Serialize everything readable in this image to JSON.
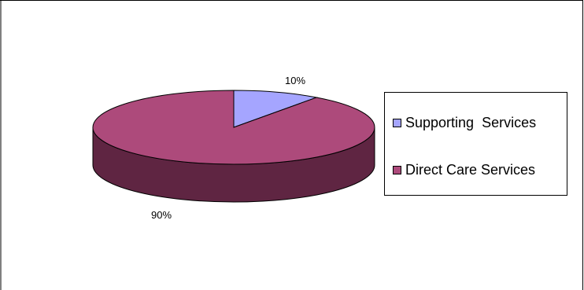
{
  "chart_data": {
    "type": "pie",
    "title": "",
    "style": "3d",
    "categories": [
      "Supporting  Services",
      "Direct Care Services"
    ],
    "values": [
      10,
      90
    ],
    "labels": [
      "10%",
      "90%"
    ],
    "colors": [
      "#a5a5ff",
      "#ad4a7b"
    ],
    "side_colors": [
      "#6e6ea8",
      "#5f2542"
    ],
    "legend_position": "right"
  }
}
